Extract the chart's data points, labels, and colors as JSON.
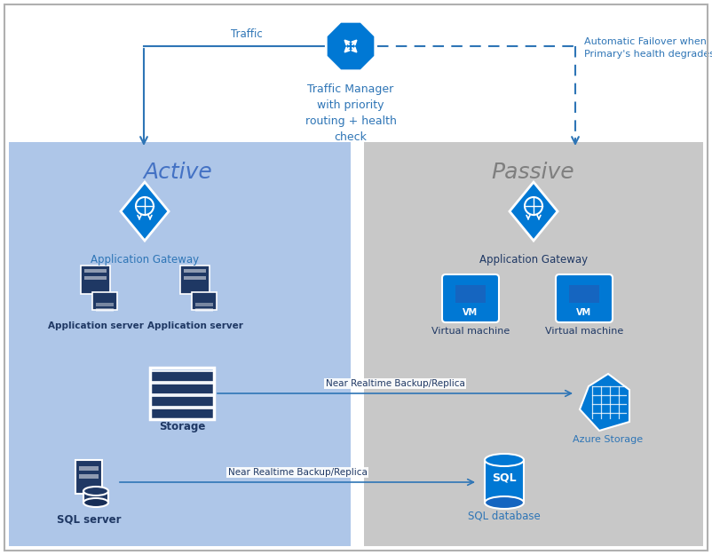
{
  "active_bg": "#aec6e8",
  "passive_bg": "#c8c8c8",
  "white_bg": "#ffffff",
  "blue_dark": "#1f3864",
  "blue_mid": "#2e75b6",
  "blue_icon": "#0078d4",
  "blue_arrow": "#2e75b6",
  "text_active": "#4472c4",
  "text_passive": "#7f7f7f",
  "active_label": "Active",
  "passive_label": "Passive",
  "tm_label": "Traffic Manager\nwith priority\nrouting + health\ncheck",
  "traffic_label": "Traffic",
  "failover_label": "Automatic Failover when\nPrimary's health degrades",
  "app_gw_label": "Application Gateway",
  "app_server_label": "Application server",
  "storage_label": "Storage",
  "sql_server_label": "SQL server",
  "vm_label": "Virtual machine",
  "azure_storage_label": "Azure Storage",
  "sql_db_label": "SQL database",
  "backup_label": "Near Realtime Backup/Replica"
}
